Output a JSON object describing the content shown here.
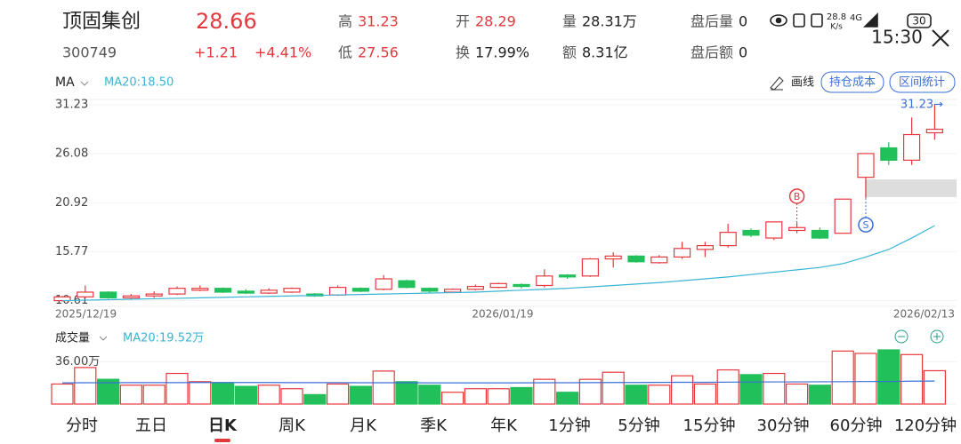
{
  "header": {
    "name": "顶固集创",
    "code": "300749",
    "price": "28.66",
    "change": "+1.21",
    "change_pct": "+4.41%",
    "stats": [
      {
        "label": "高",
        "value": "31.23",
        "color": "#e2393d"
      },
      {
        "label": "低",
        "value": "27.56",
        "color": "#e2393d"
      },
      {
        "label": "开",
        "value": "28.29",
        "color": "#e2393d"
      },
      {
        "label": "换",
        "value": "17.99%",
        "color": "#222"
      },
      {
        "label": "量",
        "value": "28.31万",
        "color": "#222"
      },
      {
        "label": "额",
        "value": "8.31亿",
        "color": "#222"
      },
      {
        "label": "盘后量",
        "value": "0",
        "color": "#222"
      },
      {
        "label": "盘后额",
        "value": "0",
        "color": "#222"
      }
    ]
  },
  "status": {
    "speed": "28.8",
    "speed_unit": "K/s",
    "network": "4G",
    "battery": "30",
    "time": "15:30"
  },
  "toolbar": {
    "indicator": "MA",
    "ma_label": "MA20:18.50",
    "draw": "画线",
    "buttons": [
      "持仓成本",
      "区间统计"
    ]
  },
  "chart_data": [
    {
      "type": "candlestick",
      "ylim": [
        10.0,
        31.8
      ],
      "yticks": [
        31.23,
        26.08,
        20.92,
        15.77,
        10.61
      ],
      "x": [
        "2025/12/19",
        "2026/01/19",
        "2026/02/13"
      ],
      "max_label": {
        "value": 31.23,
        "label": "31.23→"
      },
      "markers": [
        "B",
        "S"
      ],
      "up_color": "#e6393f",
      "down_color": "#22c05a",
      "ma_color": "#3ab4d4",
      "candles": [
        [
          10.6,
          11.1,
          10.5,
          11.0
        ],
        [
          11.0,
          12.2,
          10.8,
          11.5
        ],
        [
          11.5,
          11.6,
          10.8,
          10.9
        ],
        [
          10.9,
          11.3,
          10.8,
          11.1
        ],
        [
          11.1,
          11.6,
          10.9,
          11.3
        ],
        [
          11.3,
          12.1,
          11.2,
          11.9
        ],
        [
          11.7,
          12.2,
          11.6,
          11.9
        ],
        [
          11.9,
          12.0,
          11.4,
          11.5
        ],
        [
          11.6,
          11.8,
          11.3,
          11.4
        ],
        [
          11.4,
          11.9,
          11.3,
          11.7
        ],
        [
          11.5,
          12.0,
          11.4,
          11.9
        ],
        [
          11.3,
          11.4,
          11.0,
          11.1
        ],
        [
          11.2,
          12.2,
          11.1,
          12.0
        ],
        [
          11.9,
          12.0,
          11.5,
          11.6
        ],
        [
          11.8,
          13.3,
          11.7,
          12.9
        ],
        [
          12.7,
          12.8,
          11.9,
          12.0
        ],
        [
          11.9,
          12.0,
          11.4,
          11.6
        ],
        [
          11.5,
          11.9,
          11.4,
          11.8
        ],
        [
          11.8,
          12.3,
          11.7,
          12.1
        ],
        [
          12.0,
          12.5,
          11.9,
          12.4
        ],
        [
          12.3,
          12.4,
          11.9,
          12.1
        ],
        [
          12.2,
          13.9,
          12.0,
          13.2
        ],
        [
          13.3,
          13.4,
          12.9,
          13.1
        ],
        [
          13.2,
          15.1,
          13.1,
          15.0
        ],
        [
          15.0,
          15.7,
          14.1,
          15.3
        ],
        [
          15.3,
          15.4,
          14.6,
          14.7
        ],
        [
          14.6,
          15.4,
          14.5,
          15.2
        ],
        [
          15.2,
          16.8,
          15.0,
          16.1
        ],
        [
          16.0,
          16.8,
          15.2,
          16.4
        ],
        [
          16.4,
          18.7,
          16.2,
          17.8
        ],
        [
          18.0,
          18.2,
          17.3,
          17.5
        ],
        [
          17.2,
          18.9,
          17.0,
          18.9
        ],
        [
          18.0,
          18.8,
          17.7,
          18.3
        ],
        [
          18.0,
          18.3,
          17.1,
          17.2
        ],
        [
          17.7,
          21.3,
          17.7,
          21.3
        ],
        [
          23.6,
          26.1,
          21.4,
          26.1
        ],
        [
          26.7,
          27.3,
          24.9,
          25.4
        ],
        [
          25.4,
          29.9,
          24.9,
          28.1
        ],
        [
          28.29,
          31.23,
          27.56,
          28.66
        ]
      ],
      "ma20": [
        10.6,
        10.65,
        10.7,
        10.75,
        10.8,
        10.85,
        10.9,
        10.95,
        11.0,
        11.05,
        11.1,
        11.15,
        11.2,
        11.25,
        11.3,
        11.35,
        11.4,
        11.45,
        11.5,
        11.6,
        11.7,
        11.8,
        11.9,
        12.05,
        12.2,
        12.35,
        12.5,
        12.7,
        12.9,
        13.1,
        13.35,
        13.6,
        13.85,
        14.1,
        14.5,
        15.2,
        16.0,
        17.2,
        18.5
      ]
    },
    {
      "type": "volume",
      "title": "成交量",
      "ma_label": "MA20:19.52万",
      "ylim": [
        0,
        46
      ],
      "yticks": [
        {
          "value": 36,
          "label": "36.00万"
        }
      ],
      "values": [
        17,
        31,
        21,
        16,
        16,
        26,
        19,
        18,
        15,
        16,
        13,
        8,
        17,
        15,
        28,
        19,
        16,
        10,
        13,
        13,
        14,
        21,
        10,
        21,
        27,
        16,
        16,
        24,
        17,
        29,
        25,
        26,
        17,
        16,
        45,
        43,
        46,
        42,
        28.31
      ],
      "ma20": [
        18.0,
        18.1,
        18.1,
        18.2,
        18.2,
        18.2,
        18.3,
        18.3,
        18.3,
        18.3,
        18.2,
        18.2,
        18.2,
        18.1,
        18.1,
        18.1,
        18.0,
        18.0,
        18.0,
        18.0,
        18.0,
        18.1,
        18.1,
        18.2,
        18.3,
        18.3,
        18.4,
        18.5,
        18.5,
        18.6,
        18.7,
        18.8,
        18.8,
        18.9,
        19.0,
        19.1,
        19.2,
        19.4,
        19.52
      ]
    }
  ],
  "tabs": [
    "分时",
    "五日",
    "日K",
    "周K",
    "月K",
    "季K",
    "年K",
    "1分钟",
    "5分钟",
    "15分钟",
    "30分钟",
    "60分钟",
    "120分钟"
  ]
}
